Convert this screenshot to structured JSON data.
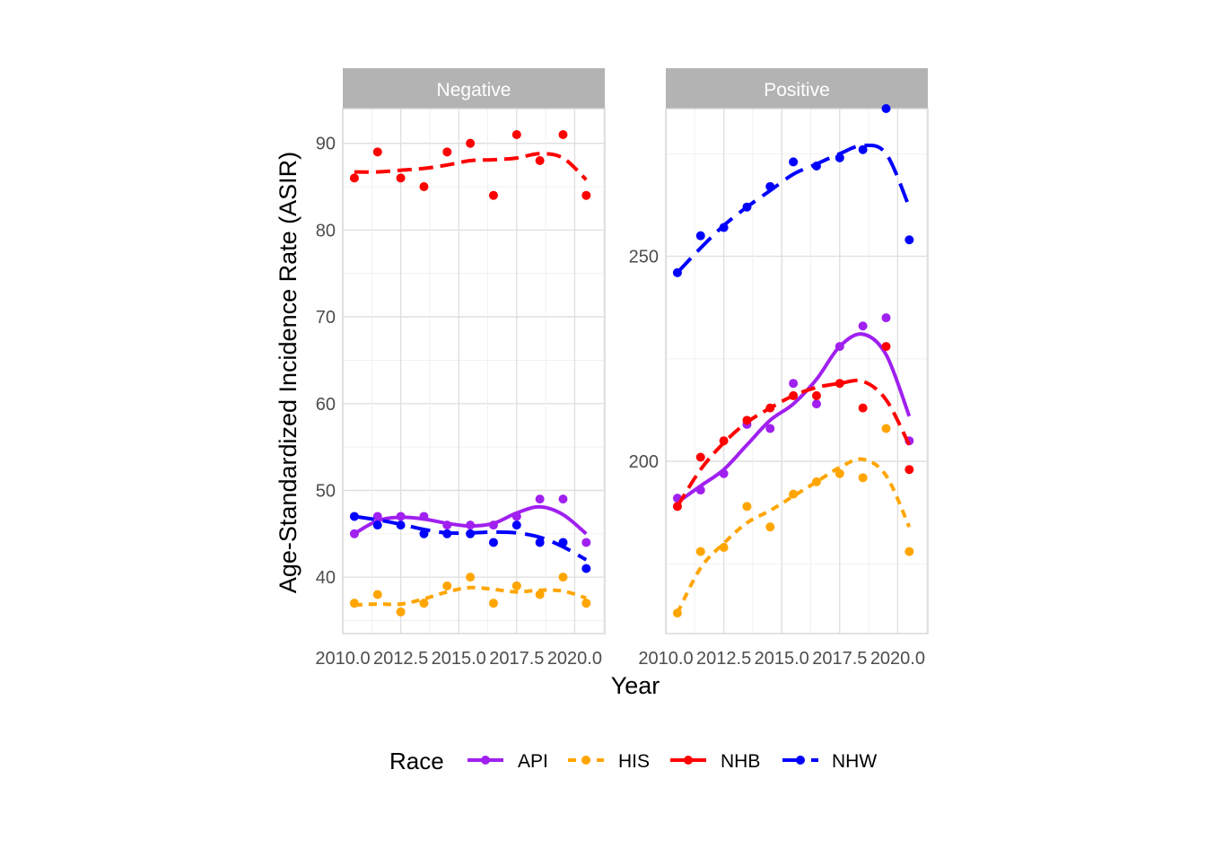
{
  "chart_data": {
    "type": "line",
    "xlabel": "Year",
    "ylabel": "Age-Standardized Incidence Rate (ASIR)",
    "legend": {
      "title": "Race",
      "position": "bottom",
      "entries": [
        {
          "name": "API",
          "color": "#a020f0",
          "linestyle": "solid"
        },
        {
          "name": "HIS",
          "color": "#ffa500",
          "linestyle": "dotted"
        },
        {
          "name": "NHB",
          "color": "#ff0000",
          "linestyle": "dashed"
        },
        {
          "name": "NHW",
          "color": "#0000ff",
          "linestyle": "longdash"
        }
      ]
    },
    "x_ticks": [
      "2010.0",
      "2012.5",
      "2015.0",
      "2017.5",
      "2020.0"
    ],
    "panels": [
      {
        "title": "Negative",
        "xlim": [
          2010,
          2021.3
        ],
        "ylim": [
          33.5,
          94
        ],
        "y_ticks": [
          "40",
          "50",
          "60",
          "70",
          "80",
          "90"
        ],
        "series": [
          {
            "name": "API",
            "points": [
              [
                2010,
                45
              ],
              [
                2011,
                47
              ],
              [
                2012,
                47
              ],
              [
                2013,
                47
              ],
              [
                2014,
                46
              ],
              [
                2015,
                46
              ],
              [
                2016,
                46
              ],
              [
                2017,
                47
              ],
              [
                2018,
                49
              ],
              [
                2019,
                49
              ],
              [
                2020,
                44
              ]
            ],
            "smooth": [
              [
                2010,
                45
              ],
              [
                2011,
                46.5
              ],
              [
                2012,
                46.9
              ],
              [
                2013,
                46.7
              ],
              [
                2014,
                46.2
              ],
              [
                2015,
                45.9
              ],
              [
                2016,
                46.2
              ],
              [
                2017,
                47.4
              ],
              [
                2018,
                48.1
              ],
              [
                2019,
                47.2
              ],
              [
                2020,
                45
              ]
            ]
          },
          {
            "name": "HIS",
            "points": [
              [
                2010,
                37
              ],
              [
                2011,
                38
              ],
              [
                2012,
                36
              ],
              [
                2013,
                37
              ],
              [
                2014,
                39
              ],
              [
                2015,
                40
              ],
              [
                2016,
                37
              ],
              [
                2017,
                39
              ],
              [
                2018,
                38
              ],
              [
                2019,
                40
              ],
              [
                2020,
                37
              ]
            ],
            "smooth": [
              [
                2010,
                36.8
              ],
              [
                2011,
                36.9
              ],
              [
                2012,
                36.9
              ],
              [
                2013,
                37.5
              ],
              [
                2014,
                38.3
              ],
              [
                2015,
                38.8
              ],
              [
                2016,
                38.6
              ],
              [
                2017,
                38.3
              ],
              [
                2018,
                38.5
              ],
              [
                2019,
                38.4
              ],
              [
                2020,
                37.6
              ]
            ]
          },
          {
            "name": "NHB",
            "points": [
              [
                2010,
                86
              ],
              [
                2011,
                89
              ],
              [
                2012,
                86
              ],
              [
                2013,
                85
              ],
              [
                2014,
                89
              ],
              [
                2015,
                90
              ],
              [
                2016,
                84
              ],
              [
                2017,
                91
              ],
              [
                2018,
                88
              ],
              [
                2019,
                91
              ],
              [
                2020,
                84
              ]
            ],
            "smooth": [
              [
                2010,
                86.7
              ],
              [
                2011,
                86.7
              ],
              [
                2012,
                86.9
              ],
              [
                2013,
                87.1
              ],
              [
                2014,
                87.5
              ],
              [
                2015,
                88
              ],
              [
                2016,
                88.1
              ],
              [
                2017,
                88.3
              ],
              [
                2018,
                88.8
              ],
              [
                2019,
                88.3
              ],
              [
                2020,
                85.8
              ]
            ]
          },
          {
            "name": "NHW",
            "points": [
              [
                2010,
                47
              ],
              [
                2011,
                46
              ],
              [
                2012,
                46
              ],
              [
                2013,
                45
              ],
              [
                2014,
                45
              ],
              [
                2015,
                45
              ],
              [
                2016,
                44
              ],
              [
                2017,
                46
              ],
              [
                2018,
                44
              ],
              [
                2019,
                44
              ],
              [
                2020,
                41
              ]
            ],
            "smooth": [
              [
                2010,
                47
              ],
              [
                2011,
                46.6
              ],
              [
                2012,
                46.1
              ],
              [
                2013,
                45.5
              ],
              [
                2014,
                45.1
              ],
              [
                2015,
                45.1
              ],
              [
                2016,
                45.2
              ],
              [
                2017,
                45.1
              ],
              [
                2018,
                44.6
              ],
              [
                2019,
                43.5
              ],
              [
                2020,
                42
              ]
            ]
          }
        ]
      },
      {
        "title": "Positive",
        "xlim": [
          2010,
          2021.3
        ],
        "ylim": [
          158,
          286
        ],
        "y_ticks": [
          "200",
          "250"
        ],
        "series": [
          {
            "name": "API",
            "points": [
              [
                2010,
                191
              ],
              [
                2011,
                193
              ],
              [
                2012,
                197
              ],
              [
                2013,
                209
              ],
              [
                2014,
                208
              ],
              [
                2015,
                219
              ],
              [
                2016,
                214
              ],
              [
                2017,
                228
              ],
              [
                2018,
                233
              ],
              [
                2019,
                235
              ],
              [
                2020,
                205
              ]
            ],
            "smooth": [
              [
                2010,
                190
              ],
              [
                2011,
                194
              ],
              [
                2012,
                198
              ],
              [
                2013,
                204
              ],
              [
                2014,
                210
              ],
              [
                2015,
                214
              ],
              [
                2016,
                220
              ],
              [
                2017,
                228
              ],
              [
                2018,
                231
              ],
              [
                2019,
                226
              ],
              [
                2020,
                211
              ]
            ]
          },
          {
            "name": "HIS",
            "points": [
              [
                2010,
                163
              ],
              [
                2011,
                178
              ],
              [
                2012,
                179
              ],
              [
                2013,
                189
              ],
              [
                2014,
                184
              ],
              [
                2015,
                192
              ],
              [
                2016,
                195
              ],
              [
                2017,
                197
              ],
              [
                2018,
                196
              ],
              [
                2019,
                208
              ],
              [
                2020,
                178
              ]
            ],
            "smooth": [
              [
                2010,
                163
              ],
              [
                2011,
                174
              ],
              [
                2012,
                180
              ],
              [
                2013,
                185
              ],
              [
                2014,
                188
              ],
              [
                2015,
                191.5
              ],
              [
                2016,
                195
              ],
              [
                2017,
                198.5
              ],
              [
                2018,
                200.5
              ],
              [
                2019,
                196.5
              ],
              [
                2020,
                184
              ]
            ]
          },
          {
            "name": "NHB",
            "points": [
              [
                2010,
                189
              ],
              [
                2011,
                201
              ],
              [
                2012,
                205
              ],
              [
                2013,
                210
              ],
              [
                2014,
                213
              ],
              [
                2015,
                216
              ],
              [
                2016,
                216
              ],
              [
                2017,
                219
              ],
              [
                2018,
                213
              ],
              [
                2019,
                228
              ],
              [
                2020,
                198
              ]
            ],
            "smooth": [
              [
                2010,
                189
              ],
              [
                2011,
                198
              ],
              [
                2012,
                204.5
              ],
              [
                2013,
                209.5
              ],
              [
                2014,
                213
              ],
              [
                2015,
                216
              ],
              [
                2016,
                218
              ],
              [
                2017,
                219
              ],
              [
                2018,
                219.5
              ],
              [
                2019,
                215
              ],
              [
                2020,
                204
              ]
            ]
          },
          {
            "name": "NHW",
            "points": [
              [
                2010,
                246
              ],
              [
                2011,
                255
              ],
              [
                2012,
                257
              ],
              [
                2013,
                262
              ],
              [
                2014,
                267
              ],
              [
                2015,
                273
              ],
              [
                2016,
                272
              ],
              [
                2017,
                274
              ],
              [
                2018,
                276
              ],
              [
                2019,
                286
              ],
              [
                2020,
                254
              ]
            ],
            "smooth": [
              [
                2010,
                246
              ],
              [
                2011,
                252
              ],
              [
                2012,
                257.5
              ],
              [
                2013,
                262
              ],
              [
                2014,
                266
              ],
              [
                2015,
                270
              ],
              [
                2016,
                272.5
              ],
              [
                2017,
                275
              ],
              [
                2018,
                277
              ],
              [
                2019,
                275
              ],
              [
                2020,
                262
              ]
            ]
          }
        ]
      }
    ]
  }
}
